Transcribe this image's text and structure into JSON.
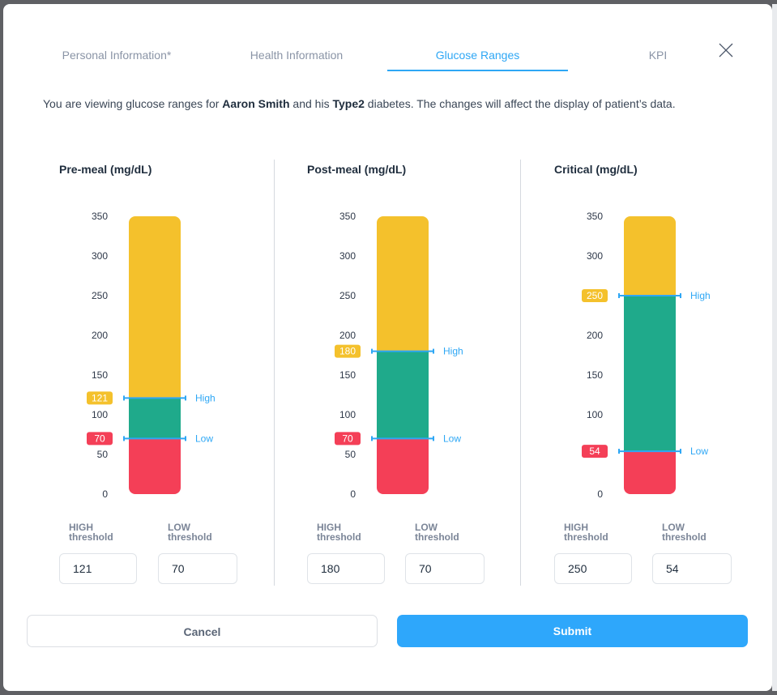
{
  "tabs": [
    {
      "label": "Personal Information*",
      "active": false
    },
    {
      "label": "Health Information",
      "active": false
    },
    {
      "label": "Glucose Ranges",
      "active": true
    },
    {
      "label": "KPI",
      "active": false
    }
  ],
  "intro": {
    "pre": "You are viewing glucose ranges for ",
    "patient_name": "Aaron Smith",
    "mid": " and his ",
    "diabetes_type": "Type2",
    "post": " diabetes. The changes will affect the display of patient’s data."
  },
  "icons": {
    "close": "close-icon",
    "tick": "threshold-marker-icon"
  },
  "colors": {
    "high": "#f4c12c",
    "normal": "#1faa8b",
    "low": "#f43f57",
    "marker": "#2ea7f5",
    "accent": "#2ea7fb"
  },
  "threshold_labels": {
    "high": "HIGH\nthreshold",
    "low": "LOW\nthreshold",
    "high_marker": "High",
    "low_marker": "Low"
  },
  "chart_data": [
    {
      "type": "bar",
      "title": "Pre-meal (mg/dL)",
      "y_ticks": [
        0,
        50,
        100,
        150,
        200,
        250,
        300,
        350
      ],
      "ylim": [
        0,
        350
      ],
      "high": 121,
      "low": 70
    },
    {
      "type": "bar",
      "title": "Post-meal (mg/dL)",
      "y_ticks": [
        0,
        50,
        100,
        150,
        200,
        250,
        300,
        350
      ],
      "ylim": [
        0,
        350
      ],
      "high": 180,
      "low": 70
    },
    {
      "type": "bar",
      "title": "Critical (mg/dL)",
      "y_ticks": [
        0,
        50,
        100,
        150,
        200,
        250,
        300,
        350
      ],
      "ylim": [
        0,
        350
      ],
      "high": 250,
      "low": 54
    }
  ],
  "inputs": [
    {
      "high": "121",
      "low": "70"
    },
    {
      "high": "180",
      "low": "70"
    },
    {
      "high": "250",
      "low": "54"
    }
  ],
  "buttons": {
    "cancel": "Cancel",
    "submit": "Submit"
  }
}
